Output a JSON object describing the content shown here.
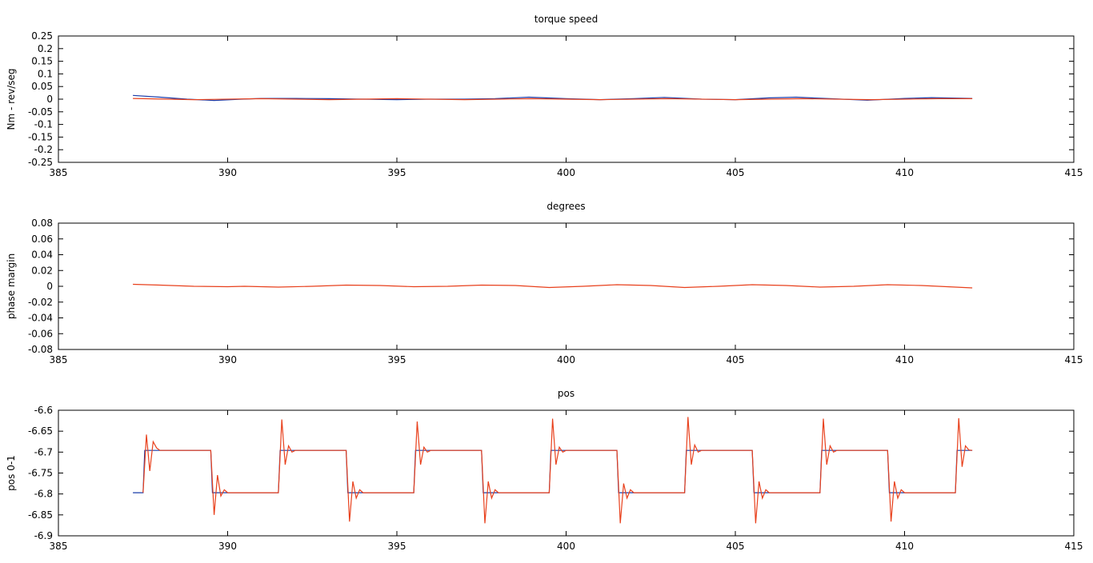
{
  "chart_data": [
    {
      "type": "line",
      "title": "torque  speed",
      "xlabel": "",
      "ylabel": "Nm - rev/seg",
      "xlim": [
        385,
        415
      ],
      "ylim": [
        -0.25,
        0.25
      ],
      "xticks": [
        385,
        390,
        395,
        400,
        405,
        410,
        415
      ],
      "yticks": [
        -0.25,
        -0.2,
        -0.15,
        -0.1,
        -0.05,
        0,
        0.05,
        0.1,
        0.15,
        0.2,
        0.25
      ],
      "ytick_labels": [
        "-0.25",
        "-0.2",
        "-0.15",
        "-0.1",
        "-0.05",
        "0",
        "0.05",
        "0.1",
        "0.15",
        "0.2",
        "0.25"
      ],
      "grid": false,
      "series": [
        {
          "color": "#1a3caa",
          "x": [
            387.2,
            388.0,
            388.8,
            389.6,
            390.4,
            391.0,
            392.0,
            393.0,
            394.0,
            395.0,
            396.0,
            397.0,
            397.9,
            398.9,
            400.0,
            401.0,
            402.0,
            402.9,
            404.0,
            405.0,
            406.0,
            406.8,
            407.8,
            408.9,
            410.0,
            410.8,
            412.0
          ],
          "y": [
            0.015,
            0.008,
            0.0,
            -0.005,
            0.0,
            0.003,
            0.003,
            0.002,
            0.0,
            -0.002,
            0.0,
            0.0,
            0.002,
            0.008,
            0.002,
            -0.002,
            0.002,
            0.007,
            0.0,
            -0.002,
            0.005,
            0.008,
            0.002,
            -0.004,
            0.003,
            0.006,
            0.003
          ]
        },
        {
          "color": "#e8401c",
          "x": [
            387.2,
            389.0,
            391.0,
            393.0,
            395.0,
            397.0,
            399.0,
            401.0,
            403.0,
            405.0,
            407.0,
            409.0,
            411.0,
            412.0
          ],
          "y": [
            0.003,
            -0.002,
            0.002,
            -0.002,
            0.002,
            -0.002,
            0.002,
            -0.002,
            0.002,
            -0.002,
            0.002,
            -0.002,
            0.002,
            0.002
          ]
        }
      ]
    },
    {
      "type": "line",
      "title": "degrees",
      "xlabel": "",
      "ylabel": "phase margin",
      "xlim": [
        385,
        415
      ],
      "ylim": [
        -0.08,
        0.08
      ],
      "xticks": [
        385,
        390,
        395,
        400,
        405,
        410,
        415
      ],
      "yticks": [
        -0.08,
        -0.06,
        -0.04,
        -0.02,
        0,
        0.02,
        0.04,
        0.06,
        0.08
      ],
      "ytick_labels": [
        "-0.08",
        "-0.06",
        "-0.04",
        "-0.02",
        "0",
        "0.02",
        "0.04",
        "0.06",
        "0.08"
      ],
      "grid": false,
      "series": [
        {
          "color": "#e8401c",
          "x": [
            387.2,
            388.0,
            389.0,
            390.0,
            390.5,
            391.5,
            392.5,
            393.5,
            394.5,
            395.5,
            396.5,
            397.5,
            398.5,
            399.5,
            400.5,
            401.5,
            402.5,
            403.5,
            404.5,
            405.5,
            406.5,
            407.5,
            408.5,
            409.5,
            410.5,
            412.0
          ],
          "y": [
            0.0025,
            0.0015,
            0.0,
            -0.0005,
            0.0,
            -0.001,
            0.0,
            0.0015,
            0.001,
            -0.0005,
            0.0,
            0.0015,
            0.001,
            -0.0015,
            0.0,
            0.002,
            0.001,
            -0.0015,
            0.0,
            0.002,
            0.001,
            -0.001,
            0.0,
            0.002,
            0.001,
            -0.002
          ]
        }
      ]
    },
    {
      "type": "line",
      "title": "pos",
      "xlabel": "",
      "ylabel": "pos 0-1",
      "xlim": [
        385,
        415
      ],
      "ylim": [
        -6.9,
        -6.6
      ],
      "xticks": [
        385,
        390,
        395,
        400,
        405,
        410,
        415
      ],
      "yticks": [
        -6.9,
        -6.85,
        -6.8,
        -6.75,
        -6.7,
        -6.65,
        -6.6
      ],
      "ytick_labels": [
        "-6.9",
        "-6.85",
        "-6.8",
        "-6.75",
        "-6.7",
        "-6.65",
        "-6.6"
      ],
      "grid": false,
      "series": [
        {
          "color": "#1a3caa",
          "x": [
            387.2,
            387.5,
            387.55,
            389.5,
            389.55,
            391.5,
            391.55,
            393.5,
            393.55,
            395.5,
            395.55,
            397.5,
            397.55,
            399.5,
            399.55,
            401.5,
            401.55,
            403.5,
            403.55,
            405.5,
            405.55,
            407.5,
            407.55,
            409.5,
            409.55,
            411.5,
            411.55,
            412.0
          ],
          "y": [
            -6.797,
            -6.797,
            -6.696,
            -6.696,
            -6.797,
            -6.797,
            -6.696,
            -6.696,
            -6.797,
            -6.797,
            -6.696,
            -6.696,
            -6.797,
            -6.797,
            -6.696,
            -6.696,
            -6.797,
            -6.797,
            -6.696,
            -6.696,
            -6.797,
            -6.797,
            -6.696,
            -6.696,
            -6.797,
            -6.797,
            -6.696,
            -6.696
          ]
        },
        {
          "color": "#e8401c",
          "x": [
            387.5,
            387.6,
            387.7,
            387.8,
            387.9,
            388.0,
            388.2,
            388.5,
            389.5,
            389.6,
            389.7,
            389.8,
            389.9,
            390.0,
            390.2,
            390.5,
            391.5,
            391.6,
            391.7,
            391.8,
            391.9,
            392.0,
            392.2,
            392.5,
            393.5,
            393.6,
            393.7,
            393.8,
            393.9,
            394.0,
            394.2,
            394.5,
            395.5,
            395.6,
            395.7,
            395.8,
            395.9,
            396.0,
            396.2,
            396.5,
            397.5,
            397.6,
            397.7,
            397.8,
            397.9,
            398.0,
            398.2,
            398.5,
            399.5,
            399.6,
            399.7,
            399.8,
            399.9,
            400.0,
            400.2,
            400.5,
            401.5,
            401.6,
            401.7,
            401.8,
            401.9,
            402.0,
            402.2,
            402.5,
            403.5,
            403.6,
            403.7,
            403.8,
            403.9,
            404.0,
            404.2,
            404.5,
            405.5,
            405.6,
            405.7,
            405.8,
            405.9,
            406.0,
            406.2,
            406.5,
            407.5,
            407.6,
            407.7,
            407.8,
            407.9,
            408.0,
            408.2,
            408.5,
            409.5,
            409.6,
            409.7,
            409.8,
            409.9,
            410.0,
            410.2,
            410.5,
            411.5,
            411.6,
            411.7,
            411.8,
            411.9,
            412.0
          ],
          "y": [
            -6.797,
            -6.658,
            -6.745,
            -6.675,
            -6.69,
            -6.696,
            -6.696,
            -6.696,
            -6.696,
            -6.85,
            -6.755,
            -6.805,
            -6.79,
            -6.797,
            -6.797,
            -6.797,
            -6.797,
            -6.622,
            -6.73,
            -6.685,
            -6.7,
            -6.696,
            -6.696,
            -6.696,
            -6.696,
            -6.866,
            -6.77,
            -6.81,
            -6.79,
            -6.797,
            -6.797,
            -6.797,
            -6.797,
            -6.627,
            -6.73,
            -6.688,
            -6.7,
            -6.696,
            -6.696,
            -6.696,
            -6.696,
            -6.87,
            -6.77,
            -6.81,
            -6.79,
            -6.797,
            -6.797,
            -6.797,
            -6.797,
            -6.62,
            -6.73,
            -6.688,
            -6.7,
            -6.696,
            -6.696,
            -6.696,
            -6.696,
            -6.87,
            -6.775,
            -6.81,
            -6.79,
            -6.797,
            -6.797,
            -6.797,
            -6.797,
            -6.616,
            -6.73,
            -6.683,
            -6.7,
            -6.696,
            -6.696,
            -6.696,
            -6.696,
            -6.87,
            -6.77,
            -6.81,
            -6.79,
            -6.797,
            -6.797,
            -6.797,
            -6.797,
            -6.62,
            -6.73,
            -6.685,
            -6.7,
            -6.696,
            -6.696,
            -6.696,
            -6.696,
            -6.866,
            -6.77,
            -6.81,
            -6.79,
            -6.797,
            -6.797,
            -6.797,
            -6.797,
            -6.619,
            -6.735,
            -6.685,
            -6.695,
            -6.696
          ]
        }
      ]
    }
  ]
}
